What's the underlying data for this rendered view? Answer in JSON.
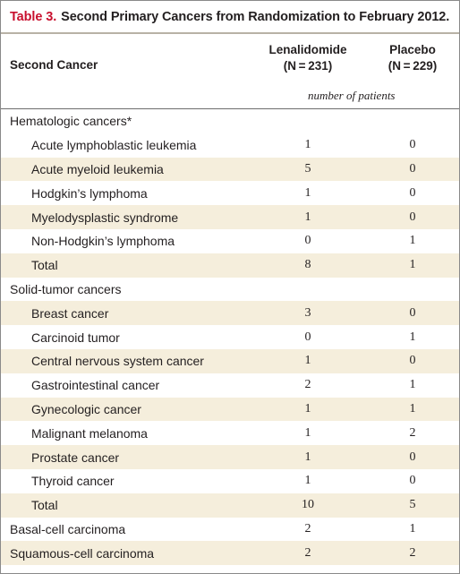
{
  "table": {
    "label": "Table 3.",
    "title": "Second Primary Cancers from Randomization to February 2012.",
    "col_first": "Second Cancer",
    "col_lenalidomide": "Lenalidomide",
    "col_lenalidomide_n": "(N = 231)",
    "col_placebo": "Placebo",
    "col_placebo_n": "(N = 229)",
    "units": "number of patients",
    "rows": [
      {
        "label": "Hematologic cancers*",
        "v1": "",
        "v2": ""
      },
      {
        "label": "Acute lymphoblastic leukemia",
        "v1": "1",
        "v2": "0"
      },
      {
        "label": "Acute myeloid leukemia",
        "v1": "5",
        "v2": "0"
      },
      {
        "label": "Hodgkin’s lymphoma",
        "v1": "1",
        "v2": "0"
      },
      {
        "label": "Myelodysplastic syndrome",
        "v1": "1",
        "v2": "0"
      },
      {
        "label": "Non-Hodgkin’s lymphoma",
        "v1": "0",
        "v2": "1"
      },
      {
        "label": "Total",
        "v1": "8",
        "v2": "1"
      },
      {
        "label": "Solid-tumor cancers",
        "v1": "",
        "v2": ""
      },
      {
        "label": "Breast cancer",
        "v1": "3",
        "v2": "0"
      },
      {
        "label": "Carcinoid tumor",
        "v1": "0",
        "v2": "1"
      },
      {
        "label": "Central nervous system cancer",
        "v1": "1",
        "v2": "0"
      },
      {
        "label": "Gastrointestinal cancer",
        "v1": "2",
        "v2": "1"
      },
      {
        "label": "Gynecologic cancer",
        "v1": "1",
        "v2": "1"
      },
      {
        "label": "Malignant melanoma",
        "v1": "1",
        "v2": "2"
      },
      {
        "label": "Prostate cancer",
        "v1": "1",
        "v2": "0"
      },
      {
        "label": "Thyroid cancer",
        "v1": "1",
        "v2": "0"
      },
      {
        "label": "Total",
        "v1": "10",
        "v2": "5"
      },
      {
        "label": "Basal-cell carcinoma",
        "v1": "2",
        "v2": "1"
      },
      {
        "label": "Squamous-cell carcinoma",
        "v1": "2",
        "v2": "2"
      }
    ]
  }
}
